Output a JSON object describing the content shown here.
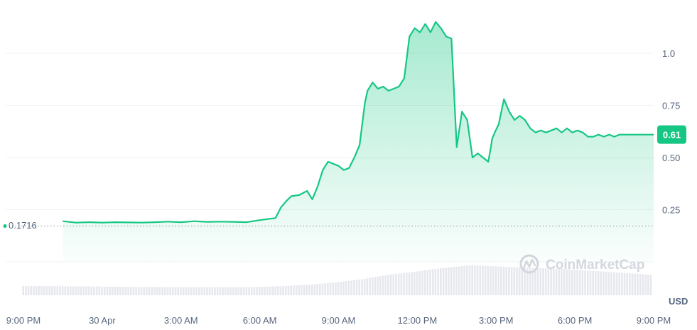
{
  "chart_data": {
    "type": "area",
    "baseline_value": 0.1716,
    "baseline_label": "0.1716",
    "current_value": 0.61,
    "current_label": "0.61",
    "currency": "USD",
    "watermark": "CoinMarketCap",
    "ylim": [
      0,
      1.3
    ],
    "y_ticks": [
      {
        "value": 0.25,
        "label": "0.25"
      },
      {
        "value": 0.5,
        "label": "0.50"
      },
      {
        "value": 0.75,
        "label": "0.75"
      },
      {
        "value": 1.0,
        "label": "1.0"
      }
    ],
    "x_ticks": [
      {
        "hour": 0,
        "label": "9:00 PM"
      },
      {
        "hour": 3,
        "label": "30 Apr"
      },
      {
        "hour": 6,
        "label": "3:00 AM"
      },
      {
        "hour": 9,
        "label": "6:00 AM"
      },
      {
        "hour": 12,
        "label": "9:00 AM"
      },
      {
        "hour": 15,
        "label": "12:00 PM"
      },
      {
        "hour": 18,
        "label": "3:00 PM"
      },
      {
        "hour": 21,
        "label": "6:00 PM"
      },
      {
        "hour": 24,
        "label": "9:00 PM"
      }
    ],
    "series": [
      {
        "x": [
          1.5,
          2.0,
          2.5,
          3.0,
          3.5,
          4.0,
          4.5,
          5.0,
          5.5,
          6.0,
          6.5,
          7.0,
          7.5,
          8.0,
          8.5,
          9.0,
          9.3,
          9.6,
          9.8,
          10.0,
          10.2,
          10.5,
          10.8,
          11.0,
          11.2,
          11.4,
          11.6,
          11.8,
          12.0,
          12.2,
          12.4,
          12.6,
          12.8,
          13.0,
          13.1,
          13.3,
          13.5,
          13.7,
          13.9,
          14.1,
          14.3,
          14.5,
          14.7,
          14.9,
          15.1,
          15.3,
          15.5,
          15.7,
          15.9,
          16.1,
          16.3,
          16.5,
          16.7,
          16.9,
          17.1,
          17.3,
          17.5,
          17.7,
          17.8,
          17.85,
          17.95,
          18.1,
          18.3,
          18.5,
          18.7,
          18.9,
          19.1,
          19.3,
          19.5,
          19.7,
          19.9,
          20.1,
          20.3,
          20.5,
          20.7,
          20.9,
          21.1,
          21.3,
          21.5,
          21.7,
          21.9,
          22.1,
          22.3,
          22.5,
          22.7,
          22.9,
          23.1,
          23.3,
          23.5,
          23.7,
          23.9,
          24.0
        ],
        "y": [
          0.195,
          0.188,
          0.19,
          0.188,
          0.19,
          0.189,
          0.188,
          0.19,
          0.193,
          0.19,
          0.195,
          0.192,
          0.193,
          0.192,
          0.19,
          0.2,
          0.205,
          0.21,
          0.26,
          0.29,
          0.315,
          0.32,
          0.34,
          0.3,
          0.36,
          0.44,
          0.48,
          0.47,
          0.46,
          0.44,
          0.45,
          0.5,
          0.56,
          0.76,
          0.82,
          0.86,
          0.83,
          0.84,
          0.82,
          0.83,
          0.84,
          0.88,
          1.08,
          1.12,
          1.1,
          1.14,
          1.1,
          1.15,
          1.12,
          1.08,
          1.07,
          0.55,
          0.72,
          0.68,
          0.5,
          0.52,
          0.5,
          0.48,
          0.55,
          0.59,
          0.62,
          0.66,
          0.78,
          0.72,
          0.68,
          0.7,
          0.68,
          0.64,
          0.62,
          0.63,
          0.62,
          0.63,
          0.64,
          0.62,
          0.64,
          0.62,
          0.63,
          0.62,
          0.6,
          0.6,
          0.61,
          0.6,
          0.61,
          0.6,
          0.61,
          0.61,
          0.61,
          0.61,
          0.61,
          0.61,
          0.61,
          0.61
        ]
      }
    ],
    "volume": {
      "x": [
        0,
        2,
        4,
        6,
        8,
        9,
        10,
        11,
        12,
        13,
        14,
        15,
        16,
        17,
        18,
        19,
        20,
        21,
        22,
        23,
        24
      ],
      "values": [
        0.31,
        0.3,
        0.28,
        0.27,
        0.27,
        0.28,
        0.31,
        0.36,
        0.44,
        0.55,
        0.7,
        0.8,
        0.92,
        1.0,
        0.97,
        0.93,
        0.9,
        0.86,
        0.8,
        0.74,
        0.68
      ]
    }
  },
  "colors": {
    "line": "#16c784",
    "area_top": "#16c784",
    "grid": "#eff2f5",
    "axis_text": "#58667e",
    "volume": "#e6e8ee",
    "baseline": "#a6b0c3",
    "badge": "#16c784"
  }
}
